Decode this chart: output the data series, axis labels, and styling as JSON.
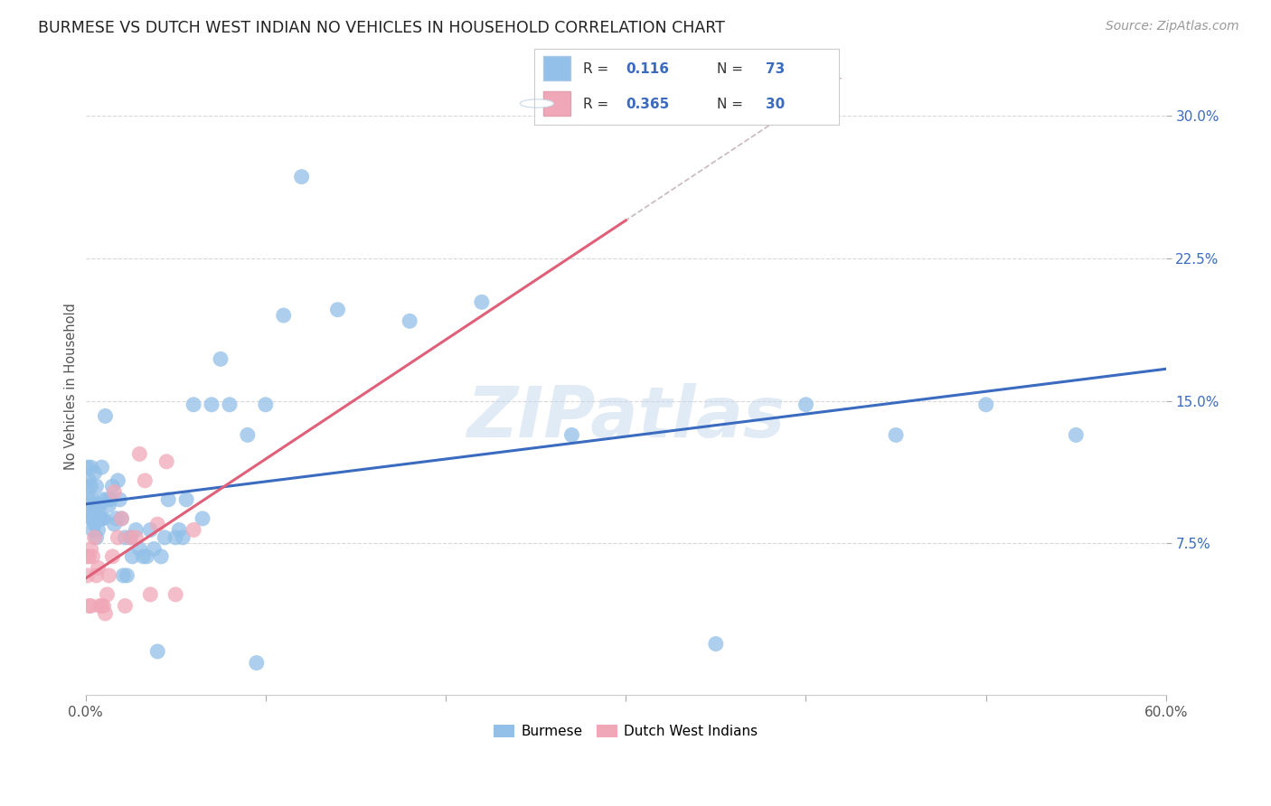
{
  "title": "BURMESE VS DUTCH WEST INDIAN NO VEHICLES IN HOUSEHOLD CORRELATION CHART",
  "source": "Source: ZipAtlas.com",
  "ylabel": "No Vehicles in Household",
  "xlim": [
    0.0,
    0.6
  ],
  "ylim": [
    -0.005,
    0.32
  ],
  "yticks": [
    0.075,
    0.15,
    0.225,
    0.3
  ],
  "ytick_labels": [
    "7.5%",
    "15.0%",
    "22.5%",
    "30.0%"
  ],
  "burmese_color": "#92c0e8",
  "dutch_color": "#f0a8b8",
  "burmese_R": 0.116,
  "burmese_N": 73,
  "dutch_R": 0.365,
  "dutch_N": 30,
  "burmese_x": [
    0.001,
    0.001,
    0.002,
    0.002,
    0.002,
    0.003,
    0.003,
    0.003,
    0.003,
    0.004,
    0.004,
    0.004,
    0.005,
    0.005,
    0.005,
    0.006,
    0.006,
    0.007,
    0.007,
    0.008,
    0.008,
    0.009,
    0.009,
    0.01,
    0.01,
    0.011,
    0.012,
    0.013,
    0.014,
    0.015,
    0.016,
    0.017,
    0.018,
    0.019,
    0.02,
    0.021,
    0.022,
    0.023,
    0.025,
    0.026,
    0.028,
    0.03,
    0.032,
    0.034,
    0.036,
    0.038,
    0.04,
    0.042,
    0.044,
    0.046,
    0.05,
    0.052,
    0.054,
    0.056,
    0.06,
    0.065,
    0.07,
    0.075,
    0.08,
    0.09,
    0.095,
    0.1,
    0.11,
    0.12,
    0.14,
    0.18,
    0.22,
    0.27,
    0.35,
    0.4,
    0.45,
    0.5,
    0.55
  ],
  "burmese_y": [
    0.115,
    0.105,
    0.108,
    0.098,
    0.092,
    0.115,
    0.105,
    0.092,
    0.088,
    0.098,
    0.088,
    0.082,
    0.112,
    0.095,
    0.085,
    0.105,
    0.078,
    0.095,
    0.082,
    0.095,
    0.088,
    0.115,
    0.088,
    0.098,
    0.088,
    0.142,
    0.098,
    0.095,
    0.098,
    0.105,
    0.085,
    0.088,
    0.108,
    0.098,
    0.088,
    0.058,
    0.078,
    0.058,
    0.078,
    0.068,
    0.082,
    0.072,
    0.068,
    0.068,
    0.082,
    0.072,
    0.018,
    0.068,
    0.078,
    0.098,
    0.078,
    0.082,
    0.078,
    0.098,
    0.148,
    0.088,
    0.148,
    0.172,
    0.148,
    0.132,
    0.012,
    0.148,
    0.195,
    0.268,
    0.198,
    0.192,
    0.202,
    0.132,
    0.022,
    0.148,
    0.132,
    0.148,
    0.132
  ],
  "dutch_x": [
    0.001,
    0.001,
    0.002,
    0.002,
    0.003,
    0.003,
    0.004,
    0.005,
    0.006,
    0.007,
    0.008,
    0.009,
    0.01,
    0.011,
    0.012,
    0.013,
    0.015,
    0.016,
    0.018,
    0.02,
    0.022,
    0.025,
    0.028,
    0.03,
    0.033,
    0.036,
    0.04,
    0.045,
    0.05,
    0.06
  ],
  "dutch_y": [
    0.068,
    0.058,
    0.068,
    0.042,
    0.072,
    0.042,
    0.068,
    0.078,
    0.058,
    0.062,
    0.042,
    0.042,
    0.042,
    0.038,
    0.048,
    0.058,
    0.068,
    0.102,
    0.078,
    0.088,
    0.042,
    0.078,
    0.078,
    0.122,
    0.108,
    0.048,
    0.085,
    0.118,
    0.048,
    0.082
  ],
  "watermark": "ZIPatlas",
  "legend_burmese_label": "Burmese",
  "legend_dutch_label": "Dutch West Indians",
  "background_color": "#ffffff",
  "grid_color": "#d8d8d8"
}
